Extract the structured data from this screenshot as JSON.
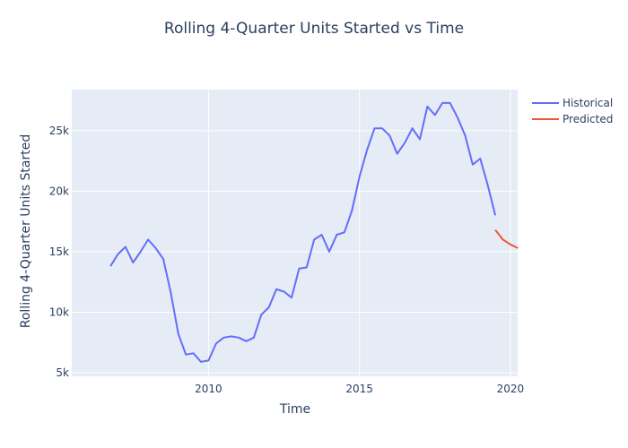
{
  "chart_data": {
    "type": "line",
    "title": "Rolling 4-Quarter Units Started vs Time",
    "xlabel": "Time",
    "ylabel": "Rolling 4-Quarter Units Started",
    "xlim": [
      2005.47,
      2020.24
    ],
    "ylim": [
      4700,
      28400
    ],
    "x_ticks": [
      2010,
      2015,
      2020
    ],
    "x_tick_labels": [
      "2010",
      "2015",
      "2020"
    ],
    "y_ticks": [
      5000,
      10000,
      15000,
      20000,
      25000
    ],
    "y_tick_labels": [
      "5k",
      "10k",
      "15k",
      "20k",
      "25k"
    ],
    "grid": true,
    "legend_position": "top-right",
    "series": [
      {
        "name": "Historical",
        "color": "#636efa",
        "x": [
          2006.75,
          2007.0,
          2007.25,
          2007.5,
          2007.75,
          2008.0,
          2008.25,
          2008.5,
          2008.75,
          2009.0,
          2009.25,
          2009.5,
          2009.75,
          2010.0,
          2010.25,
          2010.5,
          2010.75,
          2011.0,
          2011.25,
          2011.5,
          2011.75,
          2012.0,
          2012.25,
          2012.5,
          2012.75,
          2013.0,
          2013.25,
          2013.5,
          2013.75,
          2014.0,
          2014.25,
          2014.5,
          2014.75,
          2015.0,
          2015.25,
          2015.5,
          2015.75,
          2016.0,
          2016.25,
          2016.5,
          2016.75,
          2017.0,
          2017.25,
          2017.5,
          2017.75,
          2018.0,
          2018.25,
          2018.5,
          2018.75,
          2019.0,
          2019.25,
          2019.5
        ],
        "y": [
          13800,
          14800,
          15400,
          14100,
          15000,
          16000,
          15300,
          14400,
          11600,
          8200,
          6500,
          6600,
          5900,
          6000,
          7400,
          7900,
          8000,
          7900,
          7600,
          7900,
          9800,
          10400,
          11900,
          11700,
          11200,
          13600,
          13700,
          16000,
          16400,
          15000,
          16400,
          16600,
          18400,
          21200,
          23400,
          25200,
          25200,
          24600,
          23100,
          24000,
          25200,
          24300,
          27000,
          26300,
          27300,
          27300,
          26100,
          24600,
          22200,
          22700,
          20500,
          18000
        ]
      },
      {
        "name": "Predicted",
        "color": "#ef553b",
        "x": [
          2019.5,
          2019.75,
          2020.0,
          2020.25
        ],
        "y": [
          16800,
          16000,
          15600,
          15300
        ]
      }
    ]
  }
}
